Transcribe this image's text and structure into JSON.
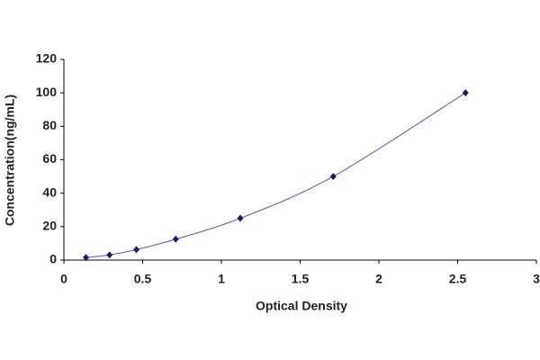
{
  "chart_data": {
    "type": "line",
    "x_label": "Optical Density",
    "y_label": "Concentration(ng/mL)",
    "x": [
      0.14,
      0.29,
      0.46,
      0.71,
      1.12,
      1.71,
      2.55
    ],
    "series": [
      {
        "color": "#1a1a6e",
        "values": [
          1.56,
          3.12,
          6.25,
          12.5,
          25,
          50,
          100
        ]
      }
    ],
    "xlim": [
      0,
      3
    ],
    "xticks": [
      0,
      0.5,
      1,
      1.5,
      2,
      2.5,
      3
    ],
    "ylim": [
      0,
      120
    ],
    "yticks": [
      0,
      20,
      40,
      60,
      80,
      100,
      120
    ],
    "grid": false
  }
}
